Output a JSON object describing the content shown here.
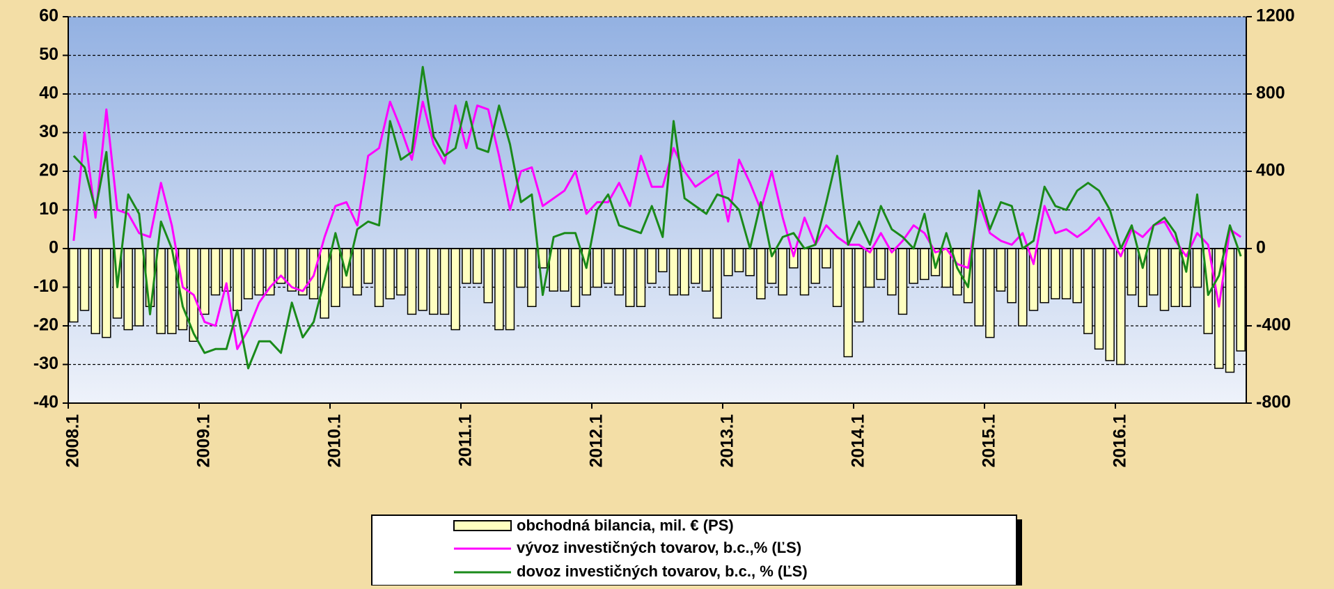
{
  "chart_data": {
    "type": "bar-line",
    "categories": [
      "2008.1",
      null,
      null,
      null,
      null,
      null,
      null,
      null,
      null,
      null,
      null,
      null,
      "2009.1",
      null,
      null,
      null,
      null,
      null,
      null,
      null,
      null,
      null,
      null,
      null,
      "2010.1",
      null,
      null,
      null,
      null,
      null,
      null,
      null,
      null,
      null,
      null,
      null,
      "2011.1",
      null,
      null,
      null,
      null,
      null,
      null,
      null,
      null,
      null,
      null,
      null,
      "2012.1",
      null,
      null,
      null,
      null,
      null,
      null,
      null,
      null,
      null,
      null,
      null,
      "2013.1",
      null,
      null,
      null,
      null,
      null,
      null,
      null,
      null,
      null,
      null,
      null,
      "2014.1",
      null,
      null,
      null,
      null,
      null,
      null,
      null,
      null,
      null,
      null,
      null,
      "2015.1",
      null,
      null,
      null,
      null,
      null,
      null,
      null,
      null,
      null,
      null,
      null,
      "2016.1",
      null,
      null,
      null,
      null,
      null,
      null,
      null,
      null,
      null,
      null,
      null
    ],
    "series": [
      {
        "name": "obchodná bilancia, mil. € (PS)",
        "type": "bar",
        "axis": "y2",
        "color": "#ffffc0",
        "values": [
          -380,
          -320,
          -440,
          -460,
          -360,
          -420,
          -400,
          -300,
          -440,
          -440,
          -420,
          -480,
          -340,
          -240,
          -220,
          -320,
          -260,
          -240,
          -240,
          -180,
          -220,
          -240,
          -260,
          -360,
          -300,
          -200,
          -240,
          -180,
          -300,
          -260,
          -240,
          -340,
          -320,
          -340,
          -340,
          -420,
          -180,
          -180,
          -280,
          -420,
          -420,
          -200,
          -300,
          -100,
          -220,
          -220,
          -300,
          -240,
          -200,
          -180,
          -240,
          -300,
          -300,
          -180,
          -120,
          -240,
          -240,
          -180,
          -220,
          -360,
          -140,
          -120,
          -140,
          -260,
          -180,
          -240,
          -100,
          -240,
          -180,
          -100,
          -300,
          -560,
          -380,
          -200,
          -160,
          -240,
          -340,
          -180,
          -160,
          -140,
          -200,
          -240,
          -280,
          -400,
          -460,
          -220,
          -280,
          -400,
          -320,
          -280,
          -260,
          -260,
          -280,
          -440,
          -520,
          -580,
          -600,
          -240,
          -300,
          -240,
          -320,
          -300,
          -300,
          -200,
          -440,
          -620,
          -640,
          -530
        ]
      },
      {
        "name": "výv­oz investičných tovarov, b.c.,% (ĽS)",
        "type": "line",
        "color": "#ff00ff",
        "values": [
          2,
          30,
          8,
          36,
          10,
          9,
          4,
          3,
          17,
          6,
          -10,
          -12,
          -19,
          -20,
          -9,
          -26,
          -21,
          -14,
          -10,
          -7,
          -10,
          -11,
          -7,
          3,
          11,
          12,
          6,
          24,
          26,
          38,
          31,
          23,
          38,
          27,
          22,
          37,
          26,
          37,
          36,
          24,
          10,
          20,
          21,
          11,
          13,
          15,
          20,
          9,
          12,
          12,
          17,
          11,
          24,
          16,
          16,
          26,
          20,
          16,
          18,
          20,
          7,
          23,
          17,
          10,
          20,
          8,
          -2,
          8,
          1,
          6,
          3,
          1,
          1,
          -1,
          4,
          -1,
          2,
          6,
          4,
          -1,
          0,
          -4,
          -5,
          12,
          4,
          2,
          1,
          4,
          -4,
          11,
          4,
          5,
          3,
          5,
          8,
          3,
          -2,
          5,
          3,
          6,
          7,
          2,
          -2,
          4,
          1,
          -15,
          5,
          3
        ]
      },
      {
        "name": "dovoz investičných tovarov, b.c., % (ĽS)",
        "type": "line",
        "color": "#1a8a1a",
        "values": [
          24,
          21,
          10,
          25,
          -10,
          14,
          9,
          -17,
          7,
          0,
          -15,
          -22,
          -27,
          -26,
          -26,
          -16,
          -31,
          -24,
          -24,
          -27,
          -14,
          -23,
          -19,
          -8,
          4,
          -7,
          5,
          7,
          6,
          33,
          23,
          25,
          47,
          29,
          24,
          26,
          38,
          26,
          25,
          37,
          27,
          12,
          14,
          -12,
          3,
          4,
          4,
          -5,
          10,
          14,
          6,
          5,
          4,
          11,
          3,
          33,
          13,
          11,
          9,
          14,
          13,
          10,
          0,
          12,
          -2,
          3,
          4,
          0,
          1,
          12,
          24,
          1,
          7,
          1,
          11,
          5,
          3,
          0,
          9,
          -5,
          4,
          -5,
          -10,
          15,
          5,
          12,
          11,
          0,
          2,
          16,
          11,
          10,
          15,
          17,
          15,
          10,
          0,
          6,
          -5,
          6,
          8,
          4,
          -6,
          14,
          -12,
          -7,
          6,
          -2
        ]
      }
    ],
    "ylim": [
      -40,
      60
    ],
    "yticks": [
      -40,
      -30,
      -20,
      -10,
      0,
      10,
      20,
      30,
      40,
      50,
      60
    ],
    "y2lim": [
      -800,
      1200
    ],
    "y2ticks": [
      -800,
      -400,
      0,
      400,
      800,
      1200
    ],
    "grid": true,
    "legend": "bottom"
  }
}
